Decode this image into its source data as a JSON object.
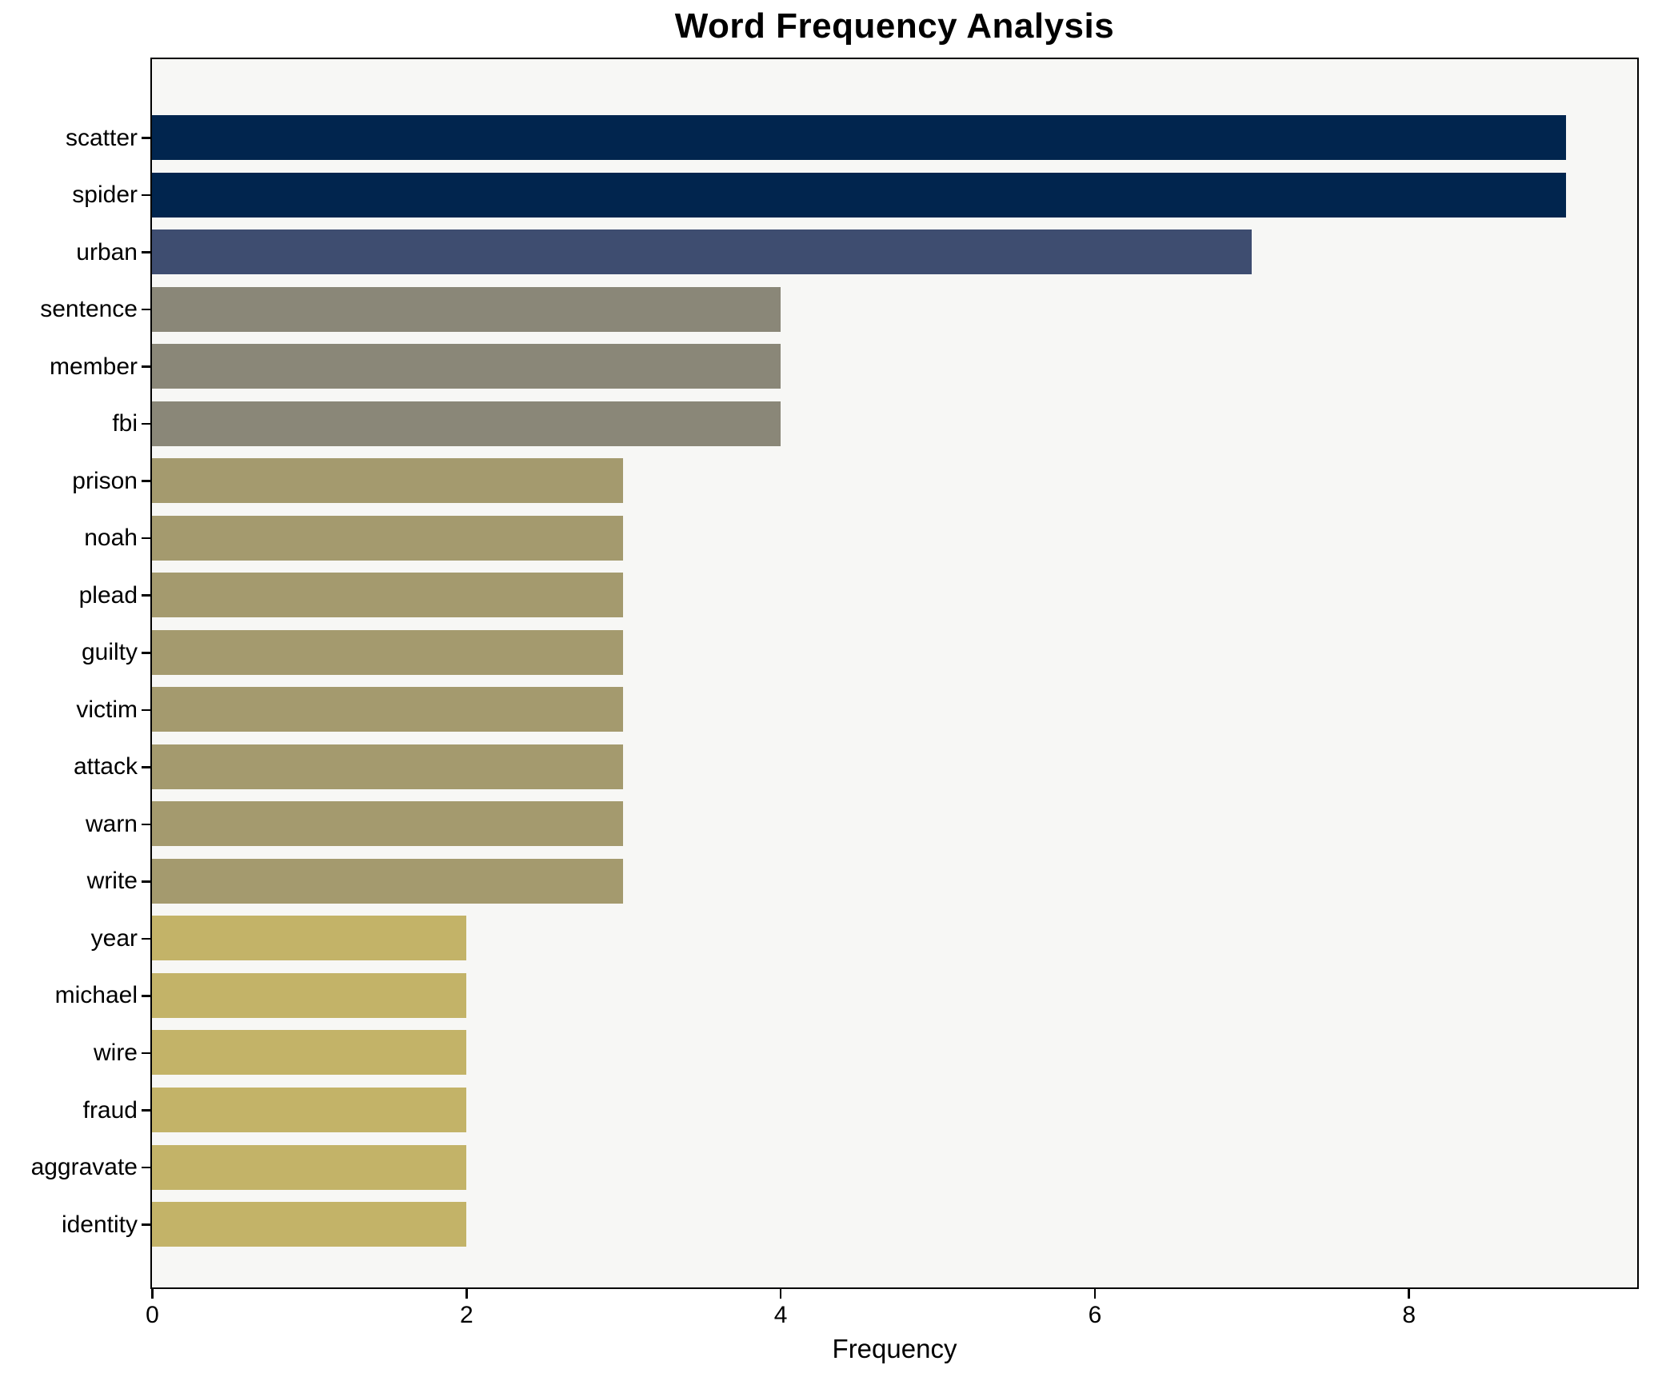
{
  "chart_data": {
    "type": "bar",
    "orientation": "horizontal",
    "title": "Word Frequency Analysis",
    "xlabel": "Frequency",
    "ylabel": "",
    "categories": [
      "scatter",
      "spider",
      "urban",
      "sentence",
      "member",
      "fbi",
      "prison",
      "noah",
      "plead",
      "guilty",
      "victim",
      "attack",
      "warn",
      "write",
      "year",
      "michael",
      "wire",
      "fraud",
      "aggravate",
      "identity"
    ],
    "values": [
      9,
      9,
      7,
      4,
      4,
      4,
      3,
      3,
      3,
      3,
      3,
      3,
      3,
      3,
      2,
      2,
      2,
      2,
      2,
      2
    ],
    "bar_colors": [
      "#01254e",
      "#01254e",
      "#3e4d70",
      "#8a8778",
      "#8a8778",
      "#8a8778",
      "#a49a6e",
      "#a49a6e",
      "#a49a6e",
      "#a49a6e",
      "#a49a6e",
      "#a49a6e",
      "#a49a6e",
      "#a49a6e",
      "#c3b368",
      "#c3b368",
      "#c3b368",
      "#c3b368",
      "#c3b368",
      "#c3b368"
    ],
    "xlim": [
      0,
      9.45
    ],
    "xticks": [
      0,
      2,
      4,
      6,
      8
    ],
    "grid": false,
    "legend_position": "none",
    "plot_background": "#f7f7f5",
    "figure_background": "#ffffff",
    "spine_color": "#000000",
    "text_color": "#000000"
  }
}
